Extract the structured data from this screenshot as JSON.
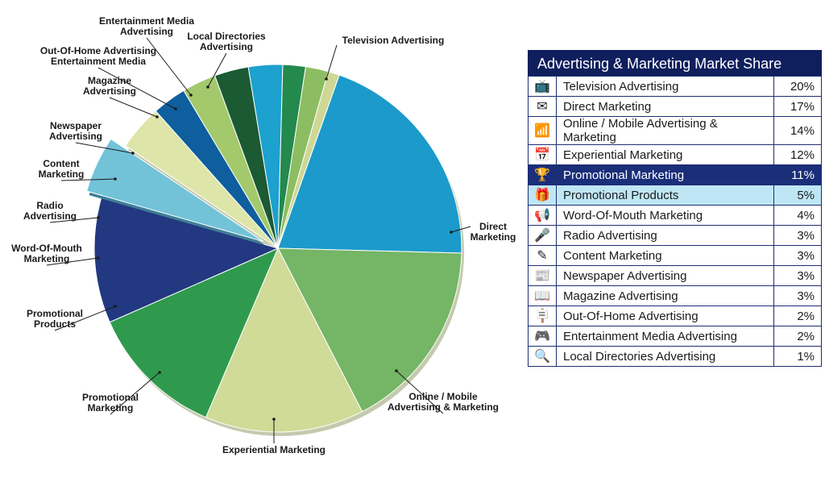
{
  "chart_data": {
    "type": "pie",
    "title": "Advertising & Marketing Market Share",
    "slices": [
      {
        "name": "Television Advertising",
        "value": 20,
        "color": "#1b9acb",
        "label_lines": [
          "Television Advertising"
        ]
      },
      {
        "name": "Direct Marketing",
        "value": 17,
        "color": "#74b566",
        "label_lines": [
          "Direct",
          "Marketing"
        ]
      },
      {
        "name": "Online / Mobile Advertising & Marketing",
        "value": 14,
        "color": "#cfdb97",
        "label_lines": [
          "Online / Mobile",
          "Advertising & Marketing"
        ]
      },
      {
        "name": "Experiential Marketing",
        "value": 12,
        "color": "#2f9a4e",
        "label_lines": [
          "Experiential Marketing"
        ]
      },
      {
        "name": "Promotional Marketing",
        "value": 11,
        "color": "#223880",
        "label_lines": [
          "Promotional",
          "Marketing"
        ]
      },
      {
        "name": "Promotional Products",
        "value": 5,
        "color": "#72c3d8",
        "label_lines": [
          "Promotional",
          "Products"
        ],
        "exploded": true
      },
      {
        "name": "Word-Of-Mouth Marketing",
        "value": 4,
        "color": "#dde5a8",
        "label_lines": [
          "Word-Of-Mouth",
          "Marketing"
        ]
      },
      {
        "name": "Radio Advertising",
        "value": 3,
        "color": "#0f5e9e",
        "label_lines": [
          "Radio",
          "Advertising"
        ]
      },
      {
        "name": "Content Marketing",
        "value": 3,
        "color": "#a3c96c",
        "label_lines": [
          "Content",
          "Marketing"
        ]
      },
      {
        "name": "Newspaper Advertising",
        "value": 3,
        "color": "#1b5a33",
        "label_lines": [
          "Newspaper",
          "Advertising"
        ]
      },
      {
        "name": "Magazine Advertising",
        "value": 3,
        "color": "#1da1cf",
        "label_lines": [
          "Magazine",
          "Advertising"
        ]
      },
      {
        "name": "Out-Of-Home Advertising",
        "value": 2,
        "color": "#23894d",
        "label_lines": [
          "Out-Of-Home Advertising",
          "Entertainment Media"
        ]
      },
      {
        "name": "Entertainment Media Advertising",
        "value": 2,
        "color": "#8cbd62",
        "label_lines": [
          "Entertainment Media",
          "Advertising"
        ]
      },
      {
        "name": "Local Directories Advertising",
        "value": 1,
        "color": "#cfd795",
        "label_lines": [
          "Local Directories",
          "Advertising"
        ]
      }
    ]
  },
  "legend": {
    "title": "Advertising & Marketing Market Share",
    "rows": [
      {
        "icon": "tv-icon",
        "glyph": "📺",
        "label": "Television Advertising",
        "value": "20%"
      },
      {
        "icon": "envelope-icon",
        "glyph": "✉",
        "label": "Direct Marketing",
        "value": "17%"
      },
      {
        "icon": "wifi-icon",
        "glyph": "📶",
        "label": "Online / Mobile Advertising & Marketing",
        "value": "14%"
      },
      {
        "icon": "calendar-icon",
        "glyph": "📅",
        "label": "Experiential Marketing",
        "value": "12%"
      },
      {
        "icon": "trophy-icon",
        "glyph": "🏆",
        "label": "Promotional Marketing",
        "value": "11%"
      },
      {
        "icon": "gift-icon",
        "glyph": "🎁",
        "label": "Promotional Products",
        "value": "5%"
      },
      {
        "icon": "megaphone-icon",
        "glyph": "📢",
        "label": "Word-Of-Mouth Marketing",
        "value": "4%"
      },
      {
        "icon": "microphone-icon",
        "glyph": "🎤",
        "label": "Radio Advertising",
        "value": "3%"
      },
      {
        "icon": "pencil-icon",
        "glyph": "✎",
        "label": "Content Marketing",
        "value": "3%"
      },
      {
        "icon": "newspaper-icon",
        "glyph": "📰",
        "label": "Newspaper Advertising",
        "value": "3%"
      },
      {
        "icon": "magazine-icon",
        "glyph": "📖",
        "label": "Magazine Advertising",
        "value": "3%"
      },
      {
        "icon": "signpost-icon",
        "glyph": "🪧",
        "label": "Out-Of-Home Advertising",
        "value": "2%"
      },
      {
        "icon": "gamepad-icon",
        "glyph": "🎮",
        "label": "Entertainment Media Advertising",
        "value": "2%"
      },
      {
        "icon": "magnifier-icon",
        "glyph": "🔍",
        "label": "Local Directories Advertising",
        "value": "1%"
      }
    ],
    "highlight_dark": 4,
    "highlight_light": 5
  }
}
